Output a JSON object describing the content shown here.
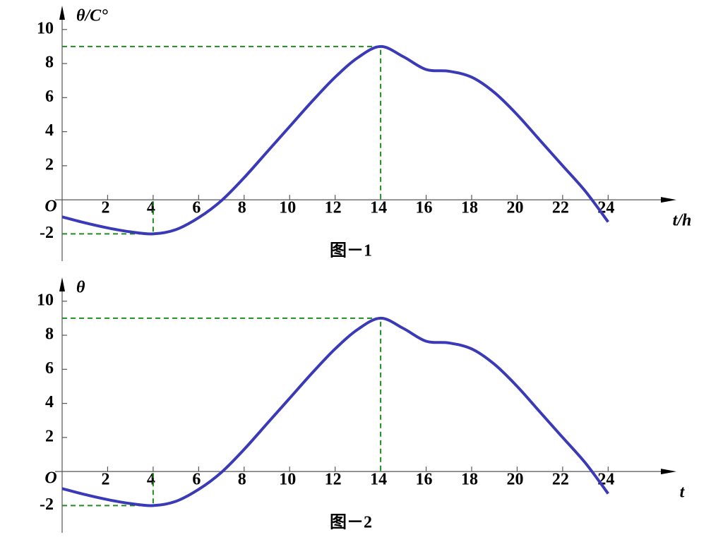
{
  "chart_data": [
    {
      "type": "line",
      "title": "图－1",
      "ylabel": "θ/C°",
      "xlabel": "t/h",
      "origin_label": "O",
      "x": [
        0,
        1,
        2,
        3,
        4,
        5,
        6,
        7,
        8,
        9,
        10,
        11,
        12,
        13,
        14,
        15,
        16,
        17,
        18,
        19,
        20,
        21,
        22,
        23,
        24
      ],
      "series": [
        {
          "color": "#3a3ab8",
          "values": [
            -1,
            -1.35,
            -1.65,
            -1.88,
            -2,
            -1.75,
            -1.05,
            -0.05,
            1.3,
            2.8,
            4.3,
            5.8,
            7.2,
            8.35,
            9,
            8.4,
            7.65,
            7.55,
            7.2,
            6.3,
            5,
            3.5,
            2,
            0.5,
            -1.3
          ]
        }
      ],
      "xlim": [
        0,
        27
      ],
      "ylim": [
        -3.6,
        11.4
      ],
      "xticks": [
        2,
        4,
        6,
        8,
        10,
        12,
        14,
        16,
        18,
        20,
        22,
        24
      ],
      "yticks": [
        {
          "value": -2,
          "label": "-2"
        },
        2,
        4,
        6,
        8,
        10
      ],
      "guides": [
        {
          "x": 14,
          "y": 9,
          "color": "#228b22"
        },
        {
          "x": 4,
          "y": -2,
          "color": "#228b22"
        }
      ],
      "grid": false
    },
    {
      "type": "line",
      "title": "图－2",
      "ylabel": "θ",
      "xlabel": "t",
      "origin_label": "O",
      "x": [
        0,
        1,
        2,
        3,
        4,
        5,
        6,
        7,
        8,
        9,
        10,
        11,
        12,
        13,
        14,
        15,
        16,
        17,
        18,
        19,
        20,
        21,
        22,
        23,
        24
      ],
      "series": [
        {
          "color": "#3a3ab8",
          "values": [
            -1,
            -1.35,
            -1.65,
            -1.88,
            -2,
            -1.75,
            -1.05,
            -0.05,
            1.3,
            2.8,
            4.3,
            5.8,
            7.2,
            8.35,
            9,
            8.4,
            7.65,
            7.55,
            7.2,
            6.3,
            5,
            3.5,
            2,
            0.5,
            -1.3
          ]
        }
      ],
      "xlim": [
        0,
        27
      ],
      "ylim": [
        -3.6,
        11.4
      ],
      "xticks": [
        2,
        4,
        6,
        8,
        10,
        12,
        14,
        16,
        18,
        20,
        22,
        24
      ],
      "yticks": [
        {
          "value": -2,
          "label": "-2"
        },
        2,
        4,
        6,
        8,
        10
      ],
      "guides": [
        {
          "x": 14,
          "y": 9,
          "color": "#228b22"
        },
        {
          "x": 4,
          "y": -2,
          "color": "#228b22"
        }
      ],
      "grid": false
    }
  ]
}
